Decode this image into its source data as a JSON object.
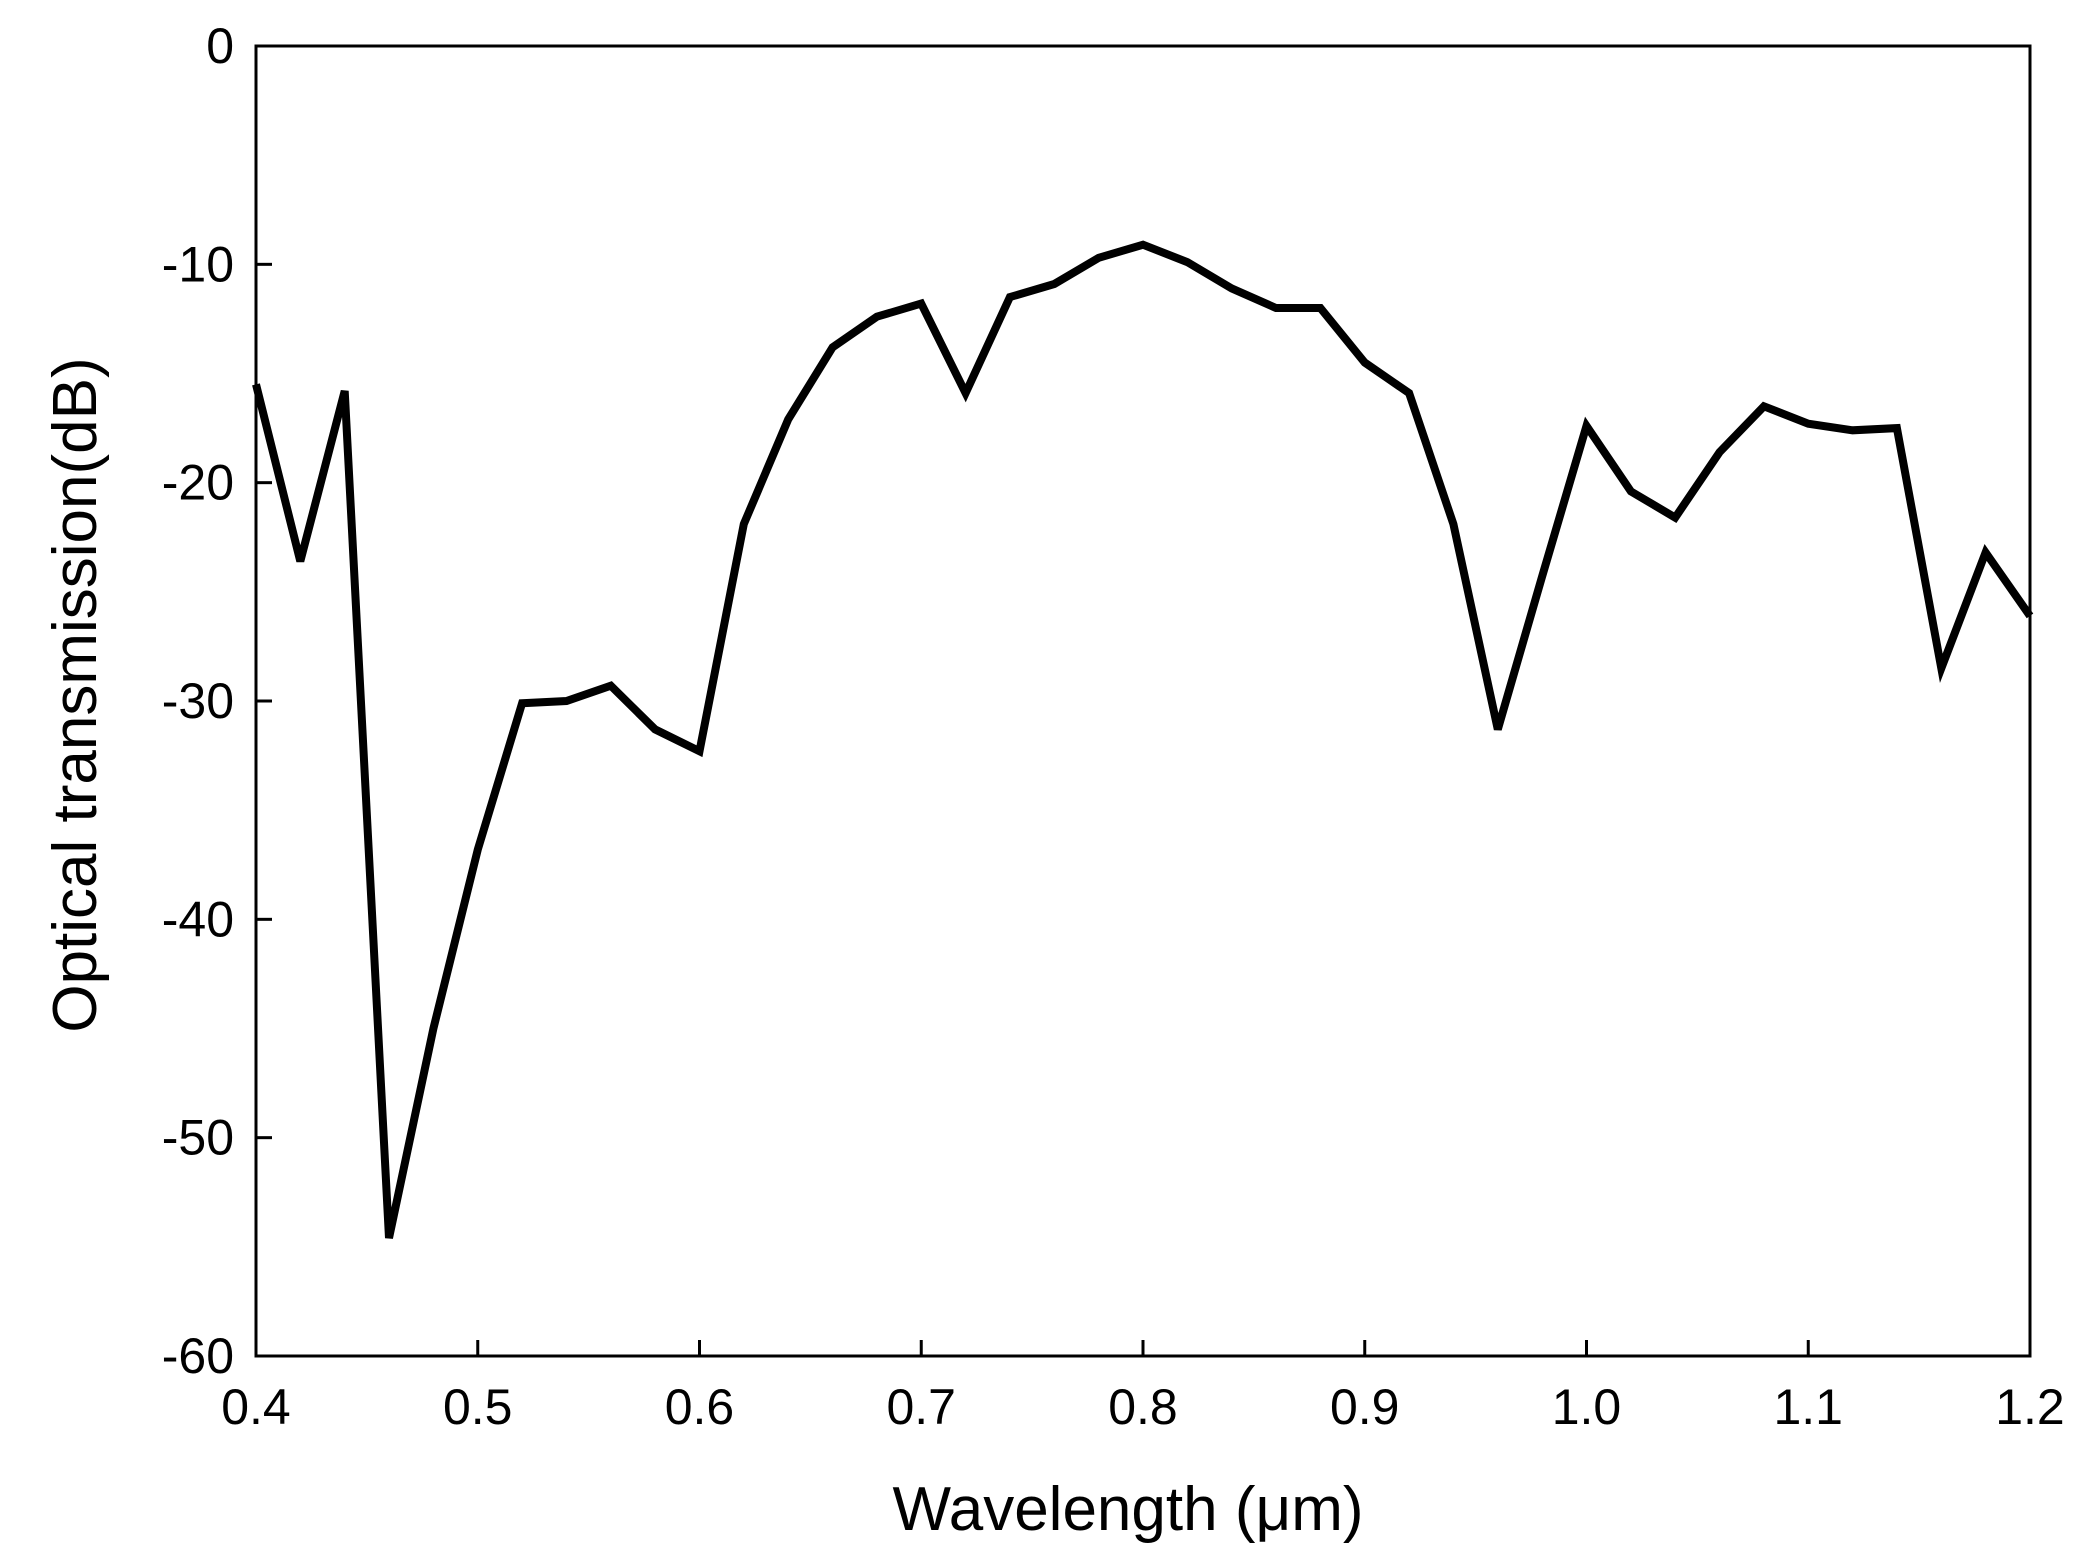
{
  "chart_data": {
    "type": "line",
    "xlabel": "Wavelength (μm)",
    "ylabel": "Optical transmission(dB)",
    "xlim": [
      0.4,
      1.2
    ],
    "ylim": [
      -60,
      0
    ],
    "xticks": [
      "0.4",
      "0.5",
      "0.6",
      "0.7",
      "0.8",
      "0.9",
      "1.0",
      "1.1",
      "1.2"
    ],
    "yticks": [
      "0",
      "-10",
      "-20",
      "-30",
      "-40",
      "-50",
      "-60"
    ],
    "grid": false,
    "line_color": "#000000",
    "series": [
      {
        "x": [
          0.4,
          0.42,
          0.44,
          0.46,
          0.48,
          0.5,
          0.52,
          0.54,
          0.56,
          0.58,
          0.6,
          0.62,
          0.64,
          0.66,
          0.68,
          0.7,
          0.72,
          0.74,
          0.76,
          0.78,
          0.8,
          0.82,
          0.84,
          0.86,
          0.88,
          0.9,
          0.92,
          0.94,
          0.96,
          0.98,
          1.0,
          1.02,
          1.04,
          1.06,
          1.08,
          1.1,
          1.12,
          1.14,
          1.16,
          1.18,
          1.2
        ],
        "y": [
          -15.5,
          -23.6,
          -15.8,
          -54.6,
          -45.0,
          -36.8,
          -30.1,
          -30.0,
          -29.3,
          -31.3,
          -32.3,
          -21.9,
          -17.1,
          -13.8,
          -12.4,
          -11.8,
          -15.9,
          -11.5,
          -10.9,
          -9.7,
          -9.1,
          -9.9,
          -11.1,
          -12.0,
          -12.0,
          -14.5,
          -15.9,
          -21.9,
          -31.3,
          -24.3,
          -17.4,
          -20.4,
          -21.6,
          -18.6,
          -16.5,
          -17.3,
          -17.6,
          -17.5,
          -28.5,
          -23.2,
          -26.1
        ]
      }
    ]
  }
}
